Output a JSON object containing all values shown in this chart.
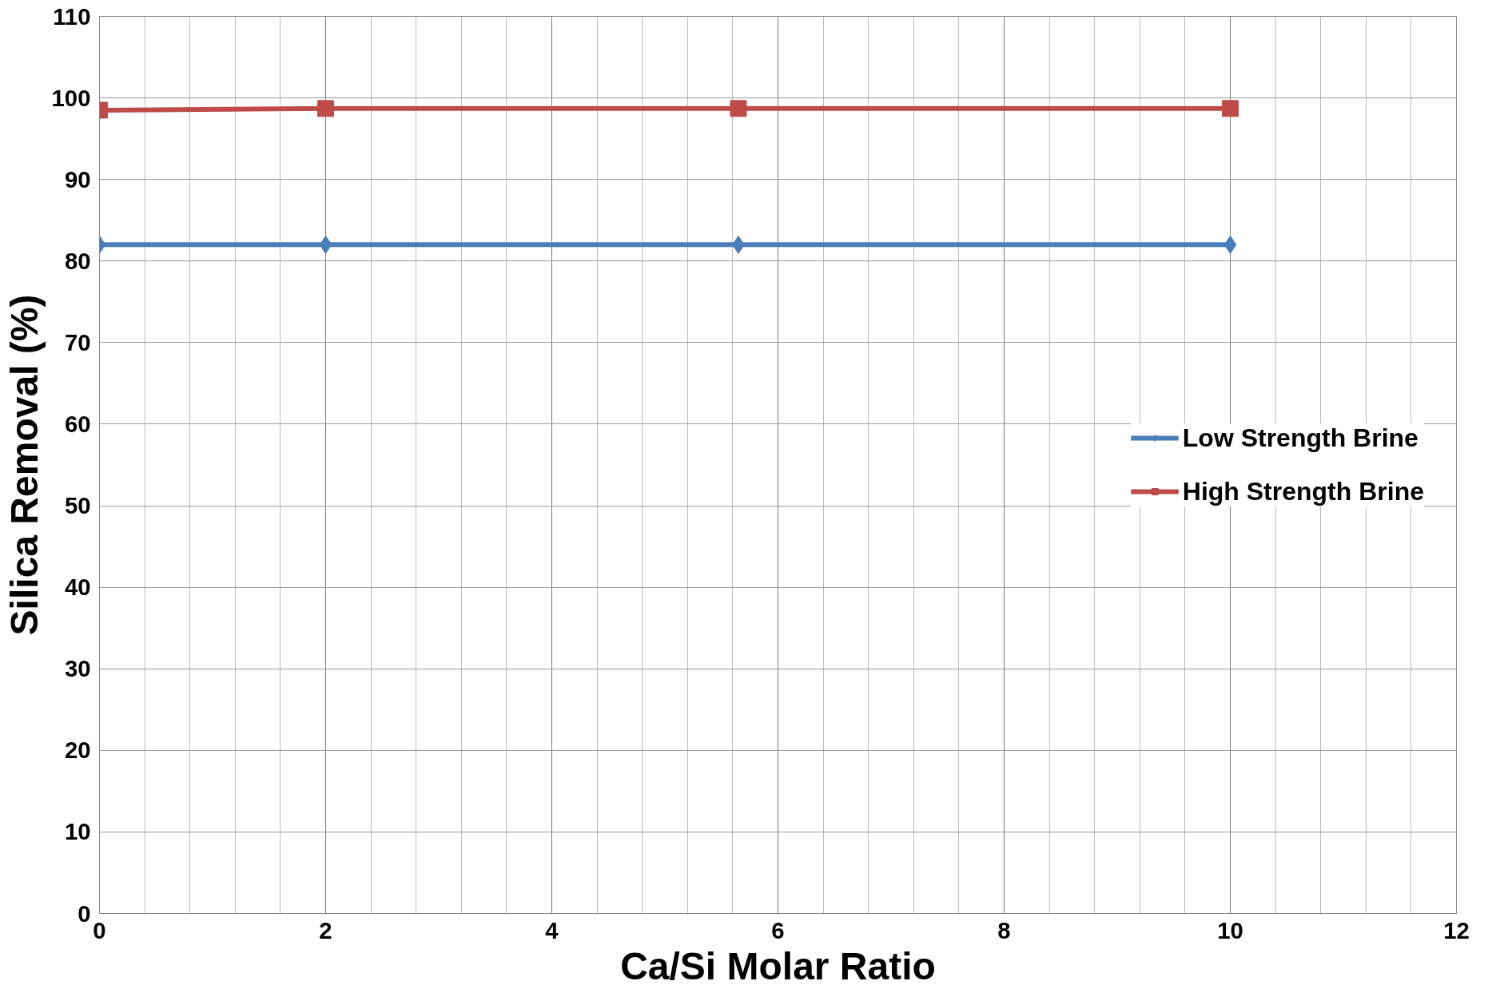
{
  "chart_data": {
    "type": "line",
    "xlabel": "Ca/Si Molar Ratio",
    "ylabel": "Silica Removal (%)",
    "x": [
      0,
      2,
      5.65,
      10
    ],
    "series": [
      {
        "name": "Low Strength Brine",
        "color": "#4a7ebb",
        "values": [
          82,
          82,
          82,
          82
        ],
        "marker": "diamond"
      },
      {
        "name": "High Strength Brine",
        "color": "#be4b48",
        "values": [
          98.5,
          98.7,
          98.7,
          98.7
        ],
        "marker": "square"
      }
    ],
    "xlim": [
      0,
      12
    ],
    "xticks": [
      0,
      2,
      4,
      6,
      8,
      10,
      12
    ],
    "ylim": [
      0,
      110
    ],
    "yticks": [
      0,
      10,
      20,
      30,
      40,
      50,
      60,
      70,
      80,
      90,
      100,
      110
    ],
    "grid": true,
    "legend": "right",
    "line_style": "solid"
  }
}
